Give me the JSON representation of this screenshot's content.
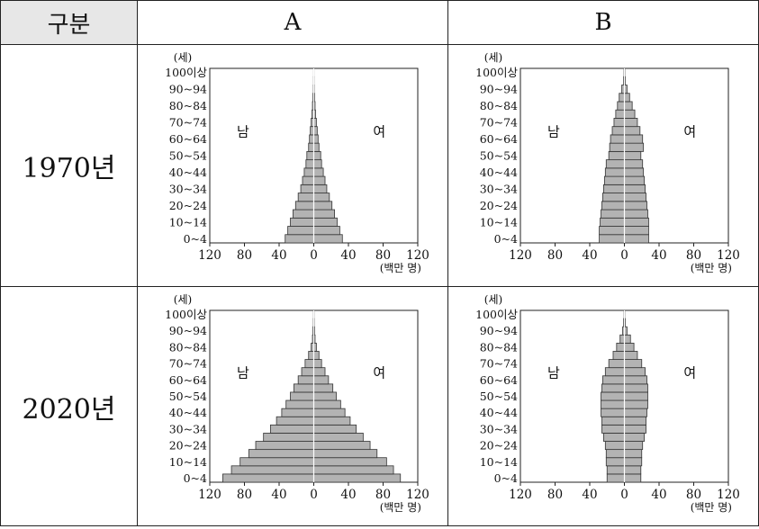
{
  "table": {
    "header_label": "구분",
    "col_a": "A",
    "col_b": "B",
    "row_1970": "1970년",
    "row_2020": "2020년"
  },
  "chart_common": {
    "age_unit": "(세)",
    "value_unit": "(백만 명)",
    "male_label": "남",
    "female_label": "여",
    "age_groups": [
      "0~4",
      "5~9",
      "10~14",
      "15~19",
      "20~24",
      "25~29",
      "30~34",
      "35~39",
      "40~44",
      "45~49",
      "50~54",
      "55~59",
      "60~64",
      "65~69",
      "70~74",
      "75~79",
      "80~84",
      "85~89",
      "90~94",
      "95~99",
      "100이상"
    ],
    "age_tick_labels": [
      "0~4",
      "10~14",
      "20~24",
      "30~34",
      "40~44",
      "50~54",
      "60~64",
      "70~74",
      "80~84",
      "90~94",
      "100이상"
    ],
    "x_tick_labels": [
      "120",
      "80",
      "40",
      "0",
      "40",
      "80",
      "120"
    ]
  },
  "chart_data": [
    {
      "type": "bar",
      "panel": "A-1970",
      "categories": [
        "0~4",
        "5~9",
        "10~14",
        "15~19",
        "20~24",
        "25~29",
        "30~34",
        "35~39",
        "40~44",
        "45~49",
        "50~54",
        "55~59",
        "60~64",
        "65~69",
        "70~74",
        "75~79",
        "80~84",
        "85~89",
        "90~94",
        "95~99",
        "100이상"
      ],
      "series": [
        {
          "name": "남",
          "values": [
            33,
            30,
            27,
            24,
            21,
            18,
            15,
            13,
            11,
            9,
            8,
            6,
            5,
            4,
            3,
            2,
            1.5,
            1,
            0.5,
            0.3,
            0.2
          ]
        },
        {
          "name": "여",
          "values": [
            33,
            30,
            27,
            24,
            21,
            18,
            15,
            13,
            11,
            9,
            8,
            6,
            5,
            4,
            3,
            2,
            1.5,
            1,
            0.5,
            0.3,
            0.2
          ]
        }
      ],
      "xlim": [
        -120,
        120
      ]
    },
    {
      "type": "bar",
      "panel": "B-1970",
      "categories": [
        "0~4",
        "5~9",
        "10~14",
        "15~19",
        "20~24",
        "25~29",
        "30~34",
        "35~39",
        "40~44",
        "45~49",
        "50~54",
        "55~59",
        "60~64",
        "65~69",
        "70~74",
        "75~79",
        "80~84",
        "85~89",
        "90~94",
        "95~99",
        "100이상"
      ],
      "series": [
        {
          "name": "남",
          "values": [
            29,
            29,
            28,
            27,
            26,
            25,
            24,
            23,
            22,
            21,
            18,
            17,
            16,
            14,
            12,
            10,
            8,
            6,
            3,
            1,
            0.5
          ]
        },
        {
          "name": "여",
          "values": [
            28,
            28,
            28,
            27,
            26,
            25,
            24,
            23,
            22,
            21,
            19,
            22,
            21,
            18,
            15,
            12,
            9,
            6,
            3,
            1,
            0.5
          ]
        }
      ],
      "xlim": [
        -120,
        120
      ]
    },
    {
      "type": "bar",
      "panel": "A-2020",
      "categories": [
        "0~4",
        "5~9",
        "10~14",
        "15~19",
        "20~24",
        "25~29",
        "30~34",
        "35~39",
        "40~44",
        "45~49",
        "50~54",
        "55~59",
        "60~64",
        "65~69",
        "70~74",
        "75~79",
        "80~84",
        "85~89",
        "90~94",
        "95~99",
        "100이상"
      ],
      "series": [
        {
          "name": "남",
          "values": [
            105,
            95,
            85,
            75,
            67,
            58,
            50,
            43,
            37,
            32,
            27,
            23,
            18,
            14,
            10,
            6,
            3,
            1.5,
            1,
            0.5,
            0.3
          ]
        },
        {
          "name": "여",
          "values": [
            100,
            92,
            84,
            73,
            65,
            57,
            49,
            42,
            36,
            31,
            26,
            22,
            17,
            13,
            9,
            6,
            3,
            1.5,
            1,
            0.5,
            0.3
          ]
        }
      ],
      "xlim": [
        -120,
        120
      ]
    },
    {
      "type": "bar",
      "panel": "B-2020",
      "categories": [
        "0~4",
        "5~9",
        "10~14",
        "15~19",
        "20~24",
        "25~29",
        "30~34",
        "35~39",
        "40~44",
        "45~49",
        "50~54",
        "55~59",
        "60~64",
        "65~69",
        "70~74",
        "75~79",
        "80~84",
        "85~89",
        "90~94",
        "95~99",
        "100이상"
      ],
      "series": [
        {
          "name": "남",
          "values": [
            20,
            20,
            21,
            21,
            22,
            24,
            26,
            26,
            27,
            27,
            27,
            26,
            25,
            22,
            18,
            13,
            9,
            5,
            2,
            1,
            0.4
          ]
        },
        {
          "name": "여",
          "values": [
            19,
            19,
            20,
            20,
            21,
            23,
            25,
            25,
            26,
            27,
            27,
            27,
            26,
            24,
            20,
            15,
            11,
            7,
            3,
            1,
            0.4
          ]
        }
      ],
      "xlim": [
        -120,
        120
      ]
    }
  ]
}
